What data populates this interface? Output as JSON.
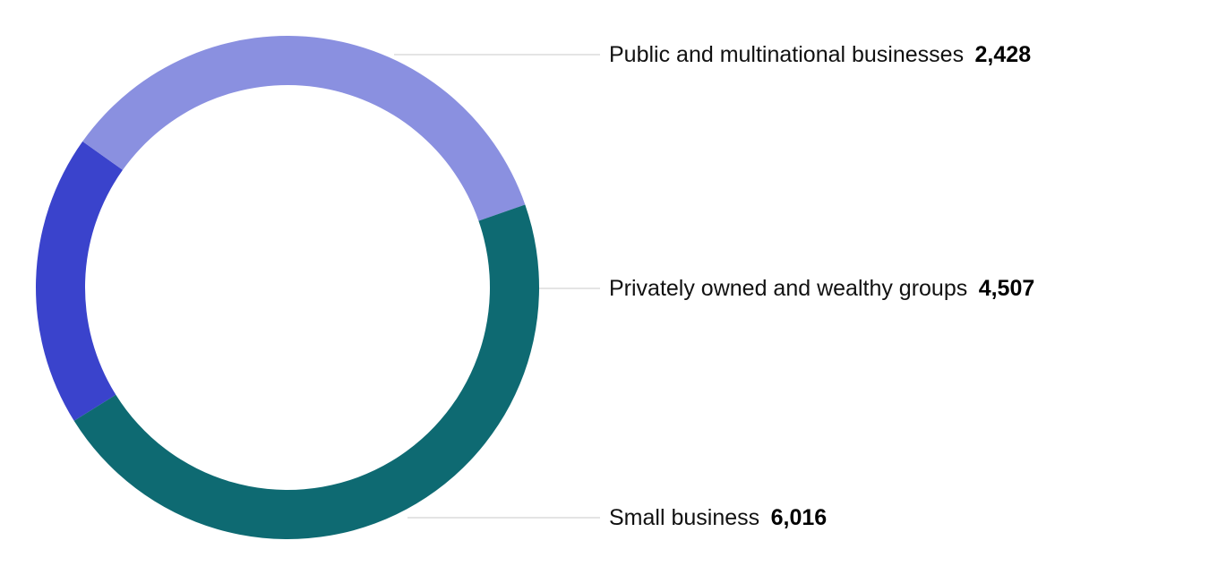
{
  "chart_data": {
    "type": "pie",
    "style": "donut",
    "categories": [
      "Public and multinational businesses",
      "Privately owned and wealthy groups",
      "Small business"
    ],
    "values": [
      2428,
      4507,
      6016
    ],
    "value_labels": [
      "2,428",
      "4,507",
      "6,016"
    ],
    "colors": [
      "#3a43cc",
      "#8a90e0",
      "#0e6a72"
    ],
    "legend": "right, with leader lines"
  }
}
